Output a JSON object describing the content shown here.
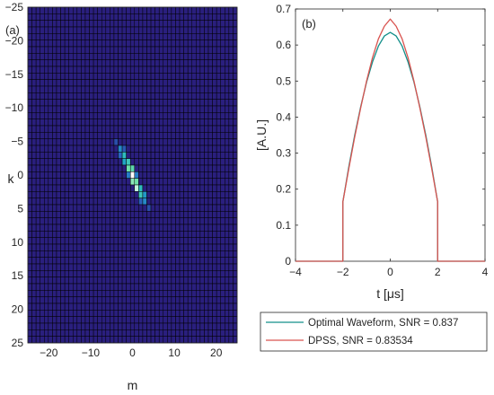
{
  "chart_data": [
    {
      "type": "heatmap",
      "panel_label": "(a)",
      "xlabel": "m",
      "ylabel": "k",
      "xlim": [
        -25,
        25
      ],
      "ylim": [
        -25,
        25
      ],
      "y_reversed": true,
      "x_ticks": [
        -20,
        -10,
        0,
        10,
        20
      ],
      "y_ticks": [
        -25,
        -20,
        -15,
        -10,
        -5,
        0,
        5,
        10,
        15,
        20,
        25
      ],
      "grid_cells": 51,
      "background_color": "#2a1f7e",
      "cell_edge_color": "#000000",
      "colormap": [
        "#2a1f7e",
        "#2a6fc8",
        "#1fb3c4",
        "#6fe0a8",
        "#ffffff"
      ],
      "bright_cells": [
        {
          "m": -3,
          "k": -4,
          "value": 0.35
        },
        {
          "m": -2,
          "k": -3,
          "value": 0.55
        },
        {
          "m": -2,
          "k": -2,
          "value": 0.45
        },
        {
          "m": -1,
          "k": -2,
          "value": 0.6
        },
        {
          "m": -1,
          "k": -1,
          "value": 0.75
        },
        {
          "m": 0,
          "k": -1,
          "value": 0.7
        },
        {
          "m": 0,
          "k": 0,
          "value": 1.0
        },
        {
          "m": 0,
          "k": 1,
          "value": 0.8
        },
        {
          "m": 1,
          "k": 1,
          "value": 0.75
        },
        {
          "m": 1,
          "k": 2,
          "value": 0.9
        },
        {
          "m": 2,
          "k": 2,
          "value": 0.55
        },
        {
          "m": 2,
          "k": 3,
          "value": 0.6
        },
        {
          "m": 3,
          "k": 3,
          "value": 0.4
        },
        {
          "m": 3,
          "k": 4,
          "value": 0.35
        },
        {
          "m": -3,
          "k": -3,
          "value": 0.22
        },
        {
          "m": -1,
          "k": 0,
          "value": 0.3
        },
        {
          "m": 1,
          "k": 0,
          "value": 0.3
        },
        {
          "m": 2,
          "k": 4,
          "value": 0.2
        },
        {
          "m": -2,
          "k": -4,
          "value": 0.18
        },
        {
          "m": 4,
          "k": 5,
          "value": 0.15
        },
        {
          "m": -4,
          "k": -5,
          "value": 0.15
        }
      ]
    },
    {
      "type": "line",
      "panel_label": "(b)",
      "xlabel": "t [μs]",
      "ylabel": "[A.U.]",
      "xlim": [
        -4,
        4
      ],
      "ylim": [
        0,
        0.7
      ],
      "x_ticks": [
        -4,
        -2,
        0,
        2,
        4
      ],
      "y_ticks": [
        0,
        0.1,
        0.2,
        0.3,
        0.4,
        0.5,
        0.6,
        0.7
      ],
      "legend_position": "below",
      "series": [
        {
          "name": "Optimal Waveform, SNR = 0.837",
          "color": "#138f8a",
          "x": [
            -4,
            -2,
            -2,
            -1.75,
            -1.5,
            -1.25,
            -1,
            -0.75,
            -0.5,
            -0.25,
            0,
            0.25,
            0.5,
            0.75,
            1,
            1.25,
            1.5,
            1.75,
            2,
            2,
            4
          ],
          "y": [
            0,
            0,
            0.165,
            0.262,
            0.35,
            0.428,
            0.497,
            0.553,
            0.597,
            0.625,
            0.635,
            0.625,
            0.597,
            0.553,
            0.497,
            0.428,
            0.35,
            0.262,
            0.165,
            0,
            0
          ]
        },
        {
          "name": "DPSS, SNR = 0.83534",
          "color": "#d9534f",
          "x": [
            -4,
            -2,
            -2,
            -1.75,
            -1.5,
            -1.25,
            -1,
            -0.75,
            -0.5,
            -0.25,
            0,
            0.25,
            0.5,
            0.75,
            1,
            1.25,
            1.5,
            1.75,
            2,
            2,
            4
          ],
          "y": [
            0,
            0,
            0.165,
            0.257,
            0.345,
            0.425,
            0.5,
            0.565,
            0.617,
            0.652,
            0.672,
            0.652,
            0.617,
            0.565,
            0.5,
            0.425,
            0.345,
            0.257,
            0.165,
            0,
            0
          ]
        }
      ]
    }
  ]
}
